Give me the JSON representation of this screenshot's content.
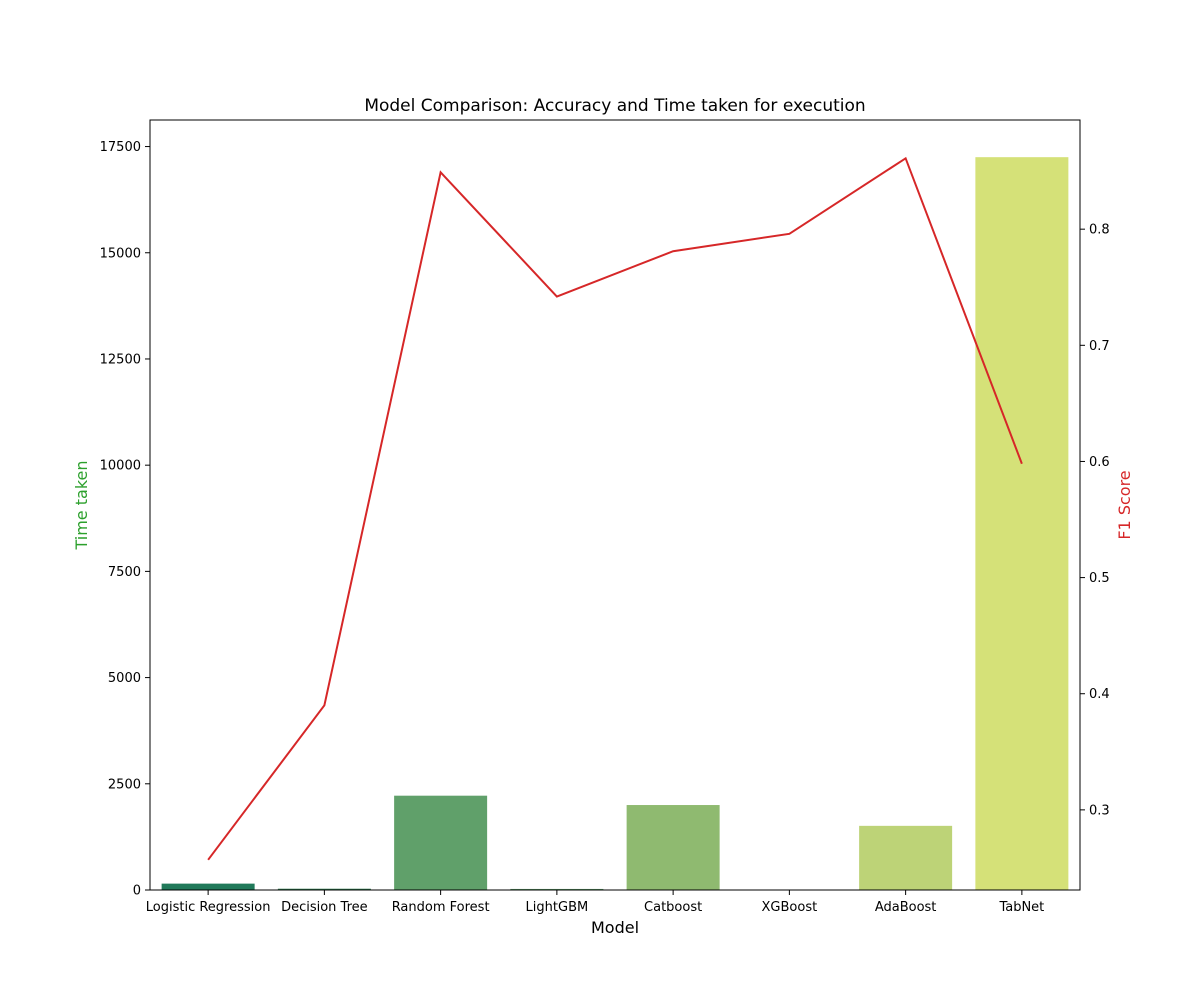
{
  "chart_data": {
    "type": "bar",
    "title": "Model Comparison: Accuracy and Time taken for execution",
    "xlabel": "Model",
    "ylabel": "Time taken",
    "y2label": "F1 Score",
    "categories": [
      "Logistic Regression",
      "Decision Tree",
      "Random Forest",
      "LightGBM",
      "Catboost",
      "XGBoost",
      "AdaBoost",
      "TabNet"
    ],
    "series": [
      {
        "kind": "bar",
        "axis": "left",
        "values": [
          150,
          30,
          2220,
          25,
          2000,
          5,
          1510,
          17250
        ],
        "colors": [
          "#217a5a",
          "#2f7a50",
          "#60a06a",
          "#5fa06b",
          "#8fba70",
          "#a9c873",
          "#bdd377",
          "#d5e178"
        ]
      },
      {
        "kind": "line",
        "axis": "right",
        "color": "#d62728",
        "values": [
          0.257,
          0.39,
          0.849,
          0.742,
          0.781,
          0.796,
          0.861,
          0.598
        ]
      }
    ],
    "ylim": [
      0,
      18125
    ],
    "yticks": [
      0,
      2500,
      5000,
      7500,
      10000,
      12500,
      15000,
      17500
    ],
    "y2lim": [
      0.231,
      0.894
    ],
    "y2ticks": [
      0.3,
      0.4,
      0.5,
      0.6,
      0.7,
      0.8
    ],
    "colors": {
      "ylabel": "#2ca02c",
      "y2label": "#d62728",
      "line": "#d62728"
    },
    "grid": false
  }
}
